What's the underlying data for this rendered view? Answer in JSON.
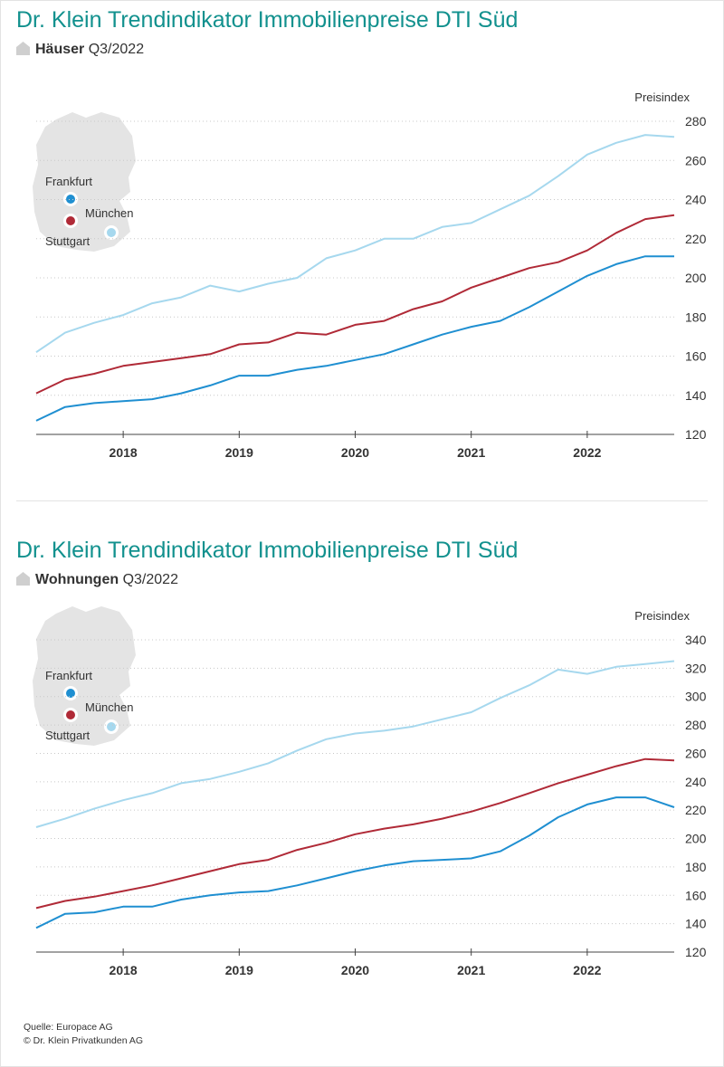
{
  "colors": {
    "title": "#12918e",
    "frankfurt": "#1f8fd1",
    "stuttgart": "#b02a37",
    "muenchen": "#a6d8ee",
    "map": "#e4e4e4",
    "grid": "#c8c8c8",
    "axis": "#444444"
  },
  "icons": {
    "subtitle_marker": "house-icon"
  },
  "charts": [
    {
      "title": "Dr. Klein Trendindikator Immobilienpreise DTI Süd",
      "subtitle_bold": "Häuser",
      "subtitle_period": "Q3/2022",
      "map_labels": {
        "frankfurt": "Frankfurt",
        "muenchen": "München",
        "stuttgart": "Stuttgart"
      }
    },
    {
      "title": "Dr. Klein Trendindikator Immobilienpreise DTI Süd",
      "subtitle_bold": "Wohnungen",
      "subtitle_period": "Q3/2022",
      "map_labels": {
        "frankfurt": "Frankfurt",
        "muenchen": "München",
        "stuttgart": "Stuttgart"
      }
    }
  ],
  "source": {
    "line1": "Quelle: Europace AG",
    "line2": "© Dr. Klein Privatkunden AG"
  },
  "chart_data": [
    {
      "type": "line",
      "title": "Dr. Klein Trendindikator Immobilienpreise DTI Süd",
      "subtitle": "Häuser Q3/2022",
      "ylabel": "Preisindex",
      "ylim": [
        120,
        280
      ],
      "yticks": [
        120,
        140,
        160,
        180,
        200,
        220,
        240,
        260,
        280
      ],
      "xlim": [
        2017.25,
        2022.75
      ],
      "xticks": [
        "2018",
        "2019",
        "2020",
        "2021",
        "2022"
      ],
      "grid": "horizontal dotted",
      "x": [
        2017.25,
        2017.5,
        2017.75,
        2018.0,
        2018.25,
        2018.5,
        2018.75,
        2019.0,
        2019.25,
        2019.5,
        2019.75,
        2020.0,
        2020.25,
        2020.5,
        2020.75,
        2021.0,
        2021.25,
        2021.5,
        2021.75,
        2022.0,
        2022.25,
        2022.5,
        2022.75
      ],
      "series": [
        {
          "name": "München",
          "color": "#a6d8ee",
          "values": [
            162,
            172,
            177,
            181,
            187,
            190,
            196,
            193,
            197,
            200,
            210,
            214,
            220,
            220,
            226,
            228,
            235,
            242,
            252,
            263,
            269,
            273,
            272
          ]
        },
        {
          "name": "Stuttgart",
          "color": "#b02a37",
          "values": [
            141,
            148,
            151,
            155,
            157,
            159,
            161,
            166,
            167,
            172,
            171,
            176,
            178,
            184,
            188,
            195,
            200,
            205,
            208,
            214,
            223,
            230,
            232
          ]
        },
        {
          "name": "Frankfurt",
          "color": "#1f8fd1",
          "values": [
            127,
            134,
            136,
            137,
            138,
            141,
            145,
            150,
            150,
            153,
            155,
            158,
            161,
            166,
            171,
            175,
            178,
            185,
            193,
            201,
            207,
            211,
            211
          ]
        }
      ]
    },
    {
      "type": "line",
      "title": "Dr. Klein Trendindikator Immobilienpreise DTI Süd",
      "subtitle": "Wohnungen Q3/2022",
      "ylabel": "Preisindex",
      "ylim": [
        120,
        340
      ],
      "yticks": [
        120,
        140,
        160,
        180,
        200,
        220,
        240,
        260,
        280,
        300,
        320,
        340
      ],
      "xlim": [
        2017.25,
        2022.75
      ],
      "xticks": [
        "2018",
        "2019",
        "2020",
        "2021",
        "2022"
      ],
      "grid": "horizontal dotted",
      "x": [
        2017.25,
        2017.5,
        2017.75,
        2018.0,
        2018.25,
        2018.5,
        2018.75,
        2019.0,
        2019.25,
        2019.5,
        2019.75,
        2020.0,
        2020.25,
        2020.5,
        2020.75,
        2021.0,
        2021.25,
        2021.5,
        2021.75,
        2022.0,
        2022.25,
        2022.5,
        2022.75
      ],
      "series": [
        {
          "name": "München",
          "color": "#a6d8ee",
          "values": [
            208,
            214,
            221,
            227,
            232,
            239,
            242,
            247,
            253,
            262,
            270,
            274,
            276,
            279,
            284,
            289,
            299,
            308,
            319,
            316,
            321,
            323,
            325
          ]
        },
        {
          "name": "Stuttgart",
          "color": "#b02a37",
          "values": [
            151,
            156,
            159,
            163,
            167,
            172,
            177,
            182,
            185,
            192,
            197,
            203,
            207,
            210,
            214,
            219,
            225,
            232,
            239,
            245,
            251,
            256,
            255
          ]
        },
        {
          "name": "Frankfurt",
          "color": "#1f8fd1",
          "values": [
            137,
            147,
            148,
            152,
            152,
            157,
            160,
            162,
            163,
            167,
            172,
            177,
            181,
            184,
            185,
            186,
            191,
            202,
            215,
            224,
            229,
            229,
            222
          ]
        }
      ]
    }
  ]
}
